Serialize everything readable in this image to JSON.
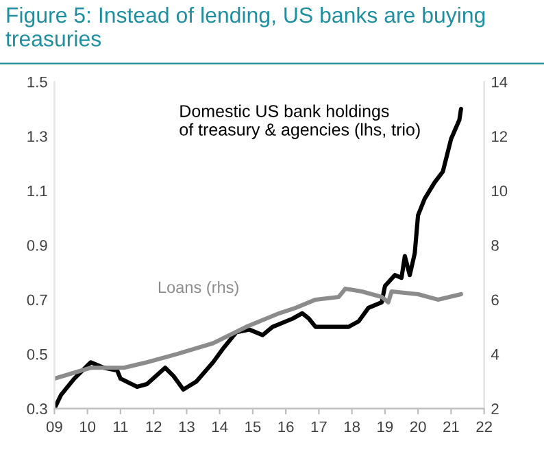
{
  "chart_data": {
    "type": "line",
    "title": "Figure 5: Instead of lending, US banks are buying treasuries",
    "xlim": [
      2009,
      2022
    ],
    "xticks": [
      {
        "value": 2009,
        "label": "09"
      },
      {
        "value": 2010,
        "label": "10"
      },
      {
        "value": 2011,
        "label": "11"
      },
      {
        "value": 2012,
        "label": "12"
      },
      {
        "value": 2013,
        "label": "13"
      },
      {
        "value": 2014,
        "label": "14"
      },
      {
        "value": 2015,
        "label": "15"
      },
      {
        "value": 2016,
        "label": "16"
      },
      {
        "value": 2017,
        "label": "17"
      },
      {
        "value": 2018,
        "label": "18"
      },
      {
        "value": 2019,
        "label": "19"
      },
      {
        "value": 2020,
        "label": "20"
      },
      {
        "value": 2021,
        "label": "21"
      },
      {
        "value": 2022,
        "label": "22"
      }
    ],
    "ylim": [
      0.3,
      1.5
    ],
    "yticks": [
      0.3,
      0.5,
      0.7,
      0.9,
      1.1,
      1.3,
      1.5
    ],
    "y2lim": [
      2,
      14
    ],
    "y2ticks": [
      2,
      4,
      6,
      8,
      10,
      12,
      14
    ],
    "grid": false,
    "legend": false,
    "series": [
      {
        "name": "Domestic US bank holdings\nof treasury & agencies (lhs, trio)",
        "color": "#000000",
        "x": [
          2009.0,
          2009.2,
          2009.6,
          2010.1,
          2010.5,
          2010.9,
          2011.0,
          2011.5,
          2011.8,
          2012.35,
          2012.6,
          2012.9,
          2013.3,
          2013.8,
          2014.1,
          2014.5,
          2014.9,
          2015.3,
          2015.6,
          2016.2,
          2016.5,
          2016.7,
          2016.9,
          2017.3,
          2017.9,
          2018.2,
          2018.5,
          2018.9,
          2019.0,
          2019.3,
          2019.5,
          2019.6,
          2019.75,
          2019.9,
          2020.0,
          2020.2,
          2020.5,
          2020.75,
          2021.0,
          2021.25,
          2021.3
        ],
        "values": [
          0.3,
          0.35,
          0.41,
          0.47,
          0.45,
          0.44,
          0.41,
          0.38,
          0.39,
          0.45,
          0.42,
          0.37,
          0.4,
          0.47,
          0.52,
          0.58,
          0.59,
          0.57,
          0.6,
          0.63,
          0.65,
          0.63,
          0.6,
          0.6,
          0.6,
          0.62,
          0.67,
          0.69,
          0.75,
          0.79,
          0.78,
          0.86,
          0.79,
          0.87,
          1.01,
          1.07,
          1.13,
          1.17,
          1.29,
          1.36,
          1.4
        ]
      },
      {
        "name": "Loans (rhs)",
        "color": "#8c8c8c",
        "axis": "y2",
        "x": [
          2009.0,
          2010.1,
          2011.1,
          2011.8,
          2012.7,
          2013.8,
          2014.8,
          2015.8,
          2016.3,
          2016.9,
          2017.6,
          2017.8,
          2018.3,
          2018.9,
          2019.1,
          2019.2,
          2020.0,
          2020.6,
          2021.3
        ],
        "values": [
          3.1,
          3.5,
          3.5,
          3.7,
          4.0,
          4.4,
          5.0,
          5.5,
          5.7,
          6.0,
          6.1,
          6.4,
          6.3,
          6.1,
          5.9,
          6.3,
          6.2,
          6.0,
          6.2
        ]
      }
    ]
  }
}
